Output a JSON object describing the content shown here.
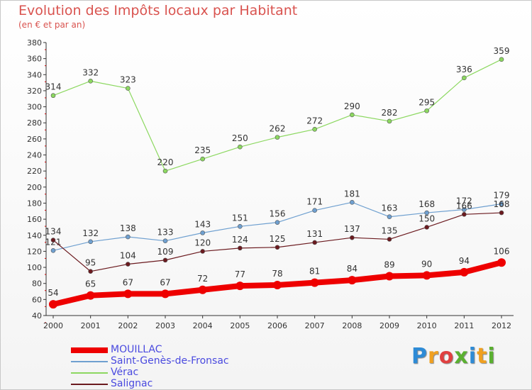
{
  "chart_data": {
    "type": "line",
    "title": "Evolution des Impôts locaux par Habitant",
    "subtitle": "(en € et par an)",
    "xlabel": "",
    "ylabel": "",
    "x": [
      "2000",
      "2001",
      "2002",
      "2003",
      "2004",
      "2005",
      "2006",
      "2007",
      "2008",
      "2009",
      "2010",
      "2011",
      "2012"
    ],
    "ylim": [
      40,
      380
    ],
    "yticks": [
      40,
      60,
      80,
      100,
      120,
      140,
      160,
      180,
      200,
      220,
      240,
      260,
      280,
      300,
      320,
      340,
      360,
      380
    ],
    "grid": false,
    "legend_position": "bottom-left",
    "series": [
      {
        "name": "MOUILLAC",
        "color": "#ee0000",
        "values": [
          54,
          65,
          67,
          67,
          72,
          77,
          78,
          81,
          84,
          89,
          90,
          94,
          106
        ]
      },
      {
        "name": "Saint-Genès-de-Fronsac",
        "color": "#6fa0d0",
        "values": [
          121,
          132,
          138,
          133,
          143,
          151,
          156,
          171,
          181,
          163,
          168,
          172,
          179
        ]
      },
      {
        "name": "Vérac",
        "color": "#8cd860",
        "values": [
          314,
          332,
          323,
          220,
          235,
          250,
          262,
          272,
          290,
          282,
          295,
          336,
          359
        ]
      },
      {
        "name": "Salignac",
        "color": "#6b1a1f",
        "values": [
          134,
          95,
          104,
          109,
          120,
          124,
          125,
          131,
          137,
          135,
          150,
          166,
          168
        ]
      }
    ]
  },
  "logo": {
    "letters": [
      "P",
      "r",
      "o",
      "x",
      "i",
      "t",
      "i"
    ],
    "colors": [
      "#2e8bd6",
      "#f0a020",
      "#e04040",
      "#5ab030",
      "#2e8bd6",
      "#f0a020",
      "#5ab030"
    ]
  }
}
